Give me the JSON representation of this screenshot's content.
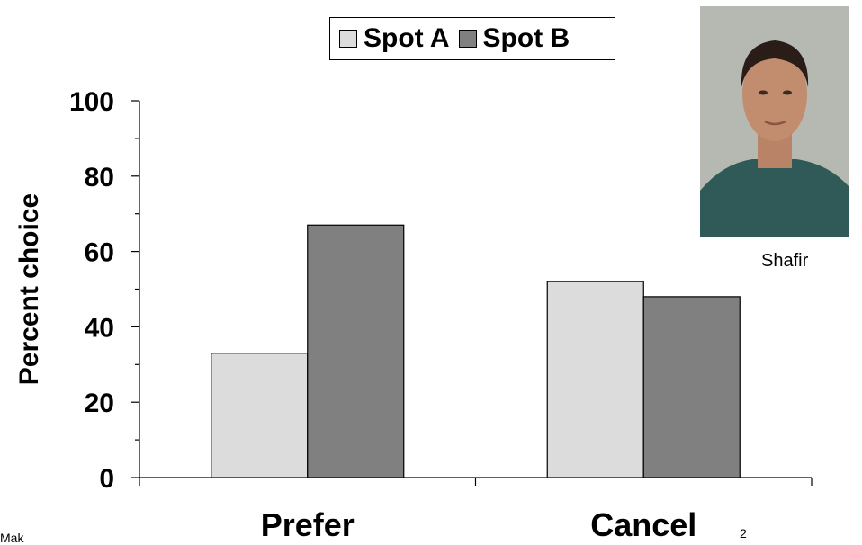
{
  "chart_data": {
    "type": "bar",
    "title": "",
    "xlabel": "",
    "ylabel": "Percent choice",
    "ylim": [
      0,
      100
    ],
    "yticks": [
      0,
      20,
      40,
      60,
      80,
      100
    ],
    "categories": [
      "Prefer",
      "Cancel"
    ],
    "series": [
      {
        "name": "Spot A",
        "values": [
          33,
          52
        ],
        "color": "#dcdcdc"
      },
      {
        "name": "Spot B",
        "values": [
          67,
          48
        ],
        "color": "#808080"
      }
    ],
    "legend_position": "top-center",
    "grid": false
  },
  "photo": {
    "caption": "Shafir"
  },
  "footer": {
    "left_text": "Mak",
    "right_text": "2"
  }
}
